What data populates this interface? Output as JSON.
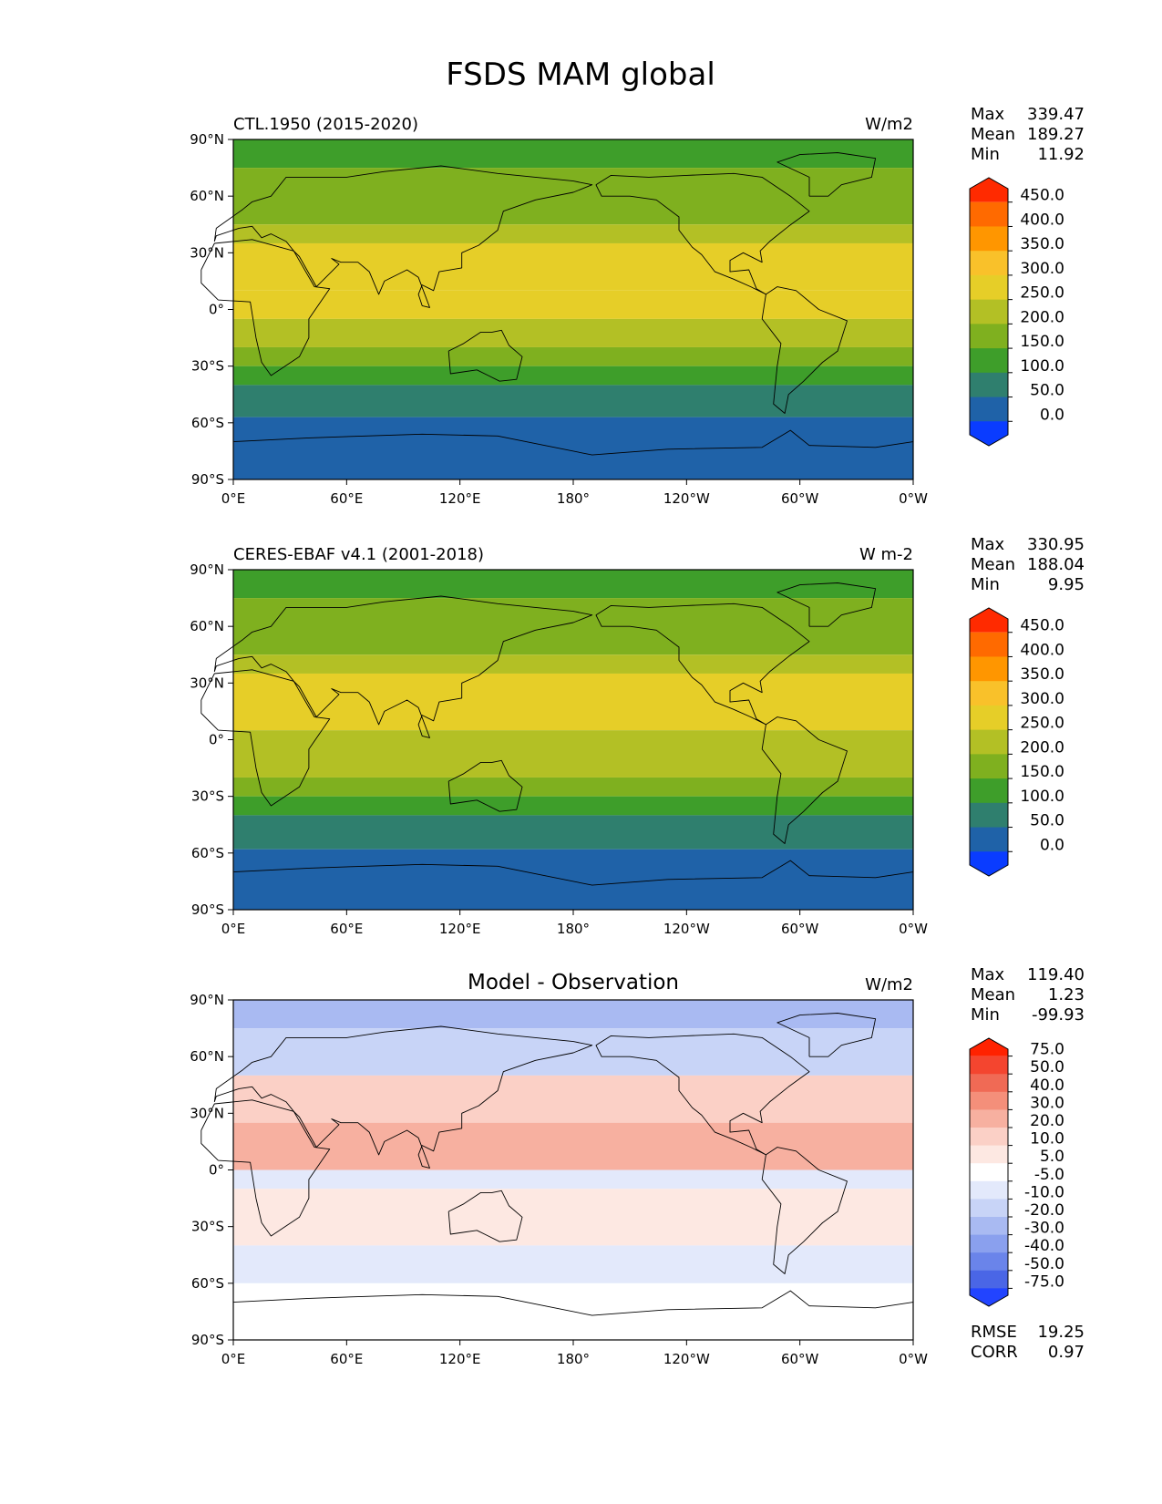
{
  "figure_title": "FSDS MAM global",
  "chart_data": [
    {
      "type": "heatmap",
      "title": "CTL.1950 (2015-2020)",
      "units": "W/m2",
      "stats": [
        {
          "label": "Max",
          "value": "339.47"
        },
        {
          "label": "Mean",
          "value": "189.27"
        },
        {
          "label": "Min",
          "value": "11.92"
        }
      ],
      "colorbar_ticks": [
        "450.0",
        "400.0",
        "350.0",
        "300.0",
        "250.0",
        "200.0",
        "150.0",
        "100.0",
        "50.0",
        "0.0"
      ],
      "colors": [
        "#ff2a00",
        "#ff6a00",
        "#ff9600",
        "#f9c12a",
        "#e6ce28",
        "#b3c025",
        "#7fb01f",
        "#3e9e2a",
        "#2f7f6e",
        "#1f62a8",
        "#0a3cff"
      ],
      "xticks": [
        "0°E",
        "60°E",
        "120°E",
        "180°",
        "120°W",
        "60°W",
        "0°W"
      ],
      "yticks": [
        "90°N",
        "60°N",
        "30°N",
        "0°",
        "30°S",
        "60°S",
        "90°S"
      ],
      "bands": [
        {
          "lat_top": 90,
          "lat_bottom": 75,
          "color": "#3e9e2a"
        },
        {
          "lat_top": 75,
          "lat_bottom": 45,
          "color": "#7fb01f"
        },
        {
          "lat_top": 45,
          "lat_bottom": 35,
          "color": "#b3c025"
        },
        {
          "lat_top": 35,
          "lat_bottom": 10,
          "color": "#e6ce28"
        },
        {
          "lat_top": 10,
          "lat_bottom": -5,
          "color": "#e6ce28"
        },
        {
          "lat_top": -5,
          "lat_bottom": -20,
          "color": "#b3c025"
        },
        {
          "lat_top": -20,
          "lat_bottom": -30,
          "color": "#7fb01f"
        },
        {
          "lat_top": -30,
          "lat_bottom": -40,
          "color": "#3e9e2a"
        },
        {
          "lat_top": -40,
          "lat_bottom": -57,
          "color": "#2f7f6e"
        },
        {
          "lat_top": -57,
          "lat_bottom": -90,
          "color": "#1f62a8"
        }
      ]
    },
    {
      "type": "heatmap",
      "title": "CERES-EBAF v4.1 (2001-2018)",
      "units": "W m-2",
      "stats": [
        {
          "label": "Max",
          "value": "330.95"
        },
        {
          "label": "Mean",
          "value": "188.04"
        },
        {
          "label": "Min",
          "value": "9.95"
        }
      ],
      "colorbar_ticks": [
        "450.0",
        "400.0",
        "350.0",
        "300.0",
        "250.0",
        "200.0",
        "150.0",
        "100.0",
        "50.0",
        "0.0"
      ],
      "colors": [
        "#ff2a00",
        "#ff6a00",
        "#ff9600",
        "#f9c12a",
        "#e6ce28",
        "#b3c025",
        "#7fb01f",
        "#3e9e2a",
        "#2f7f6e",
        "#1f62a8",
        "#0a3cff"
      ],
      "xticks": [
        "0°E",
        "60°E",
        "120°E",
        "180°",
        "120°W",
        "60°W",
        "0°W"
      ],
      "yticks": [
        "90°N",
        "60°N",
        "30°N",
        "0°",
        "30°S",
        "60°S",
        "90°S"
      ],
      "bands": [
        {
          "lat_top": 90,
          "lat_bottom": 75,
          "color": "#3e9e2a"
        },
        {
          "lat_top": 75,
          "lat_bottom": 45,
          "color": "#7fb01f"
        },
        {
          "lat_top": 45,
          "lat_bottom": 35,
          "color": "#b3c025"
        },
        {
          "lat_top": 35,
          "lat_bottom": 5,
          "color": "#e6ce28"
        },
        {
          "lat_top": 5,
          "lat_bottom": -20,
          "color": "#b3c025"
        },
        {
          "lat_top": -20,
          "lat_bottom": -30,
          "color": "#7fb01f"
        },
        {
          "lat_top": -30,
          "lat_bottom": -40,
          "color": "#3e9e2a"
        },
        {
          "lat_top": -40,
          "lat_bottom": -58,
          "color": "#2f7f6e"
        },
        {
          "lat_top": -58,
          "lat_bottom": -90,
          "color": "#1f62a8"
        }
      ]
    },
    {
      "type": "heatmap",
      "title": "Model - Observation",
      "units": "W/m2",
      "stats": [
        {
          "label": "Max",
          "value": "119.40"
        },
        {
          "label": "Mean",
          "value": "1.23"
        },
        {
          "label": "Min",
          "value": "-99.93"
        }
      ],
      "colorbar_ticks": [
        "75.0",
        "50.0",
        "40.0",
        "30.0",
        "20.0",
        "10.0",
        "5.0",
        "-5.0",
        "-10.0",
        "-20.0",
        "-30.0",
        "-40.0",
        "-50.0",
        "-75.0"
      ],
      "colors": [
        "#ff2200",
        "#f4452f",
        "#f06a55",
        "#f48f7a",
        "#f7b0a0",
        "#fbd0c6",
        "#fde8e2",
        "#ffffff",
        "#e3e9fb",
        "#c8d4f7",
        "#a9baf2",
        "#8aa0ee",
        "#6a84ea",
        "#4a66e6",
        "#2244ff"
      ],
      "xticks": [
        "0°E",
        "60°E",
        "120°E",
        "180°",
        "120°W",
        "60°W",
        "0°W"
      ],
      "yticks": [
        "90°N",
        "60°N",
        "30°N",
        "0°",
        "30°S",
        "60°S",
        "90°S"
      ],
      "bands": [
        {
          "lat_top": 90,
          "lat_bottom": 75,
          "color": "#a9baf2"
        },
        {
          "lat_top": 75,
          "lat_bottom": 50,
          "color": "#c8d4f7"
        },
        {
          "lat_top": 50,
          "lat_bottom": 25,
          "color": "#fbd0c6"
        },
        {
          "lat_top": 25,
          "lat_bottom": 0,
          "color": "#f7b0a0"
        },
        {
          "lat_top": 0,
          "lat_bottom": -10,
          "color": "#e3e9fb"
        },
        {
          "lat_top": -10,
          "lat_bottom": -40,
          "color": "#fde8e2"
        },
        {
          "lat_top": -40,
          "lat_bottom": -60,
          "color": "#e3e9fb"
        },
        {
          "lat_top": -60,
          "lat_bottom": -90,
          "color": "#ffffff"
        }
      ],
      "metrics": [
        {
          "label": "RMSE",
          "value": "19.25"
        },
        {
          "label": "CORR",
          "value": "0.97"
        }
      ]
    }
  ]
}
